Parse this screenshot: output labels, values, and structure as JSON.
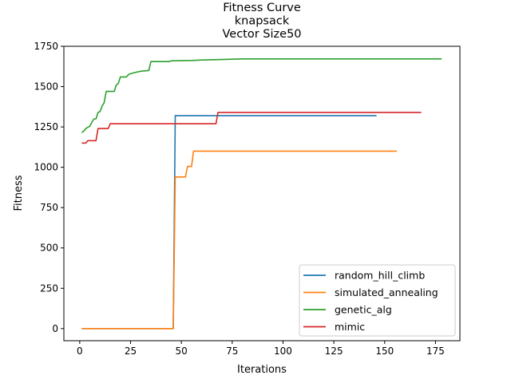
{
  "chart_data": {
    "type": "line",
    "title": [
      "Fitness Curve",
      "knapsack",
      "Vector Size50"
    ],
    "xlabel": "Iterations",
    "ylabel": "Fitness",
    "xlim": [
      -7.8,
      187
    ],
    "ylim": [
      -75,
      1750
    ],
    "xticks": [
      0,
      25,
      50,
      75,
      100,
      125,
      150,
      175
    ],
    "yticks": [
      0,
      250,
      500,
      750,
      1000,
      1250,
      1500,
      1750
    ],
    "grid": false,
    "legend_position": "lower-right",
    "series": [
      {
        "name": "random_hill_climb",
        "color": "#1f77b4",
        "points": [
          [
            1,
            0
          ],
          [
            46,
            0
          ],
          [
            47,
            1320
          ],
          [
            146,
            1320
          ]
        ]
      },
      {
        "name": "simulated_annealing",
        "color": "#ff7f0e",
        "points": [
          [
            1,
            0
          ],
          [
            46,
            0
          ],
          [
            47,
            940
          ],
          [
            52,
            940
          ],
          [
            53,
            1005
          ],
          [
            55,
            1005
          ],
          [
            56,
            1100
          ],
          [
            156,
            1100
          ]
        ]
      },
      {
        "name": "genetic_alg",
        "color": "#2ca02c",
        "points": [
          [
            1,
            1215
          ],
          [
            2,
            1225
          ],
          [
            3,
            1240
          ],
          [
            5,
            1255
          ],
          [
            6,
            1280
          ],
          [
            7,
            1300
          ],
          [
            8,
            1300
          ],
          [
            9,
            1340
          ],
          [
            10,
            1345
          ],
          [
            11,
            1380
          ],
          [
            12,
            1400
          ],
          [
            13,
            1470
          ],
          [
            17,
            1470
          ],
          [
            18,
            1510
          ],
          [
            19,
            1520
          ],
          [
            20,
            1560
          ],
          [
            23,
            1560
          ],
          [
            24,
            1575
          ],
          [
            25,
            1580
          ],
          [
            28,
            1590
          ],
          [
            30,
            1595
          ],
          [
            34,
            1600
          ],
          [
            35,
            1655
          ],
          [
            44,
            1655
          ],
          [
            45,
            1660
          ],
          [
            55,
            1662
          ],
          [
            60,
            1665
          ],
          [
            70,
            1668
          ],
          [
            80,
            1672
          ],
          [
            178,
            1672
          ]
        ]
      },
      {
        "name": "mimic",
        "color": "#d62728",
        "points": [
          [
            1,
            1150
          ],
          [
            3,
            1150
          ],
          [
            4,
            1165
          ],
          [
            8,
            1165
          ],
          [
            9,
            1240
          ],
          [
            14,
            1240
          ],
          [
            15,
            1270
          ],
          [
            67,
            1270
          ],
          [
            68,
            1340
          ],
          [
            168,
            1340
          ]
        ]
      }
    ]
  }
}
